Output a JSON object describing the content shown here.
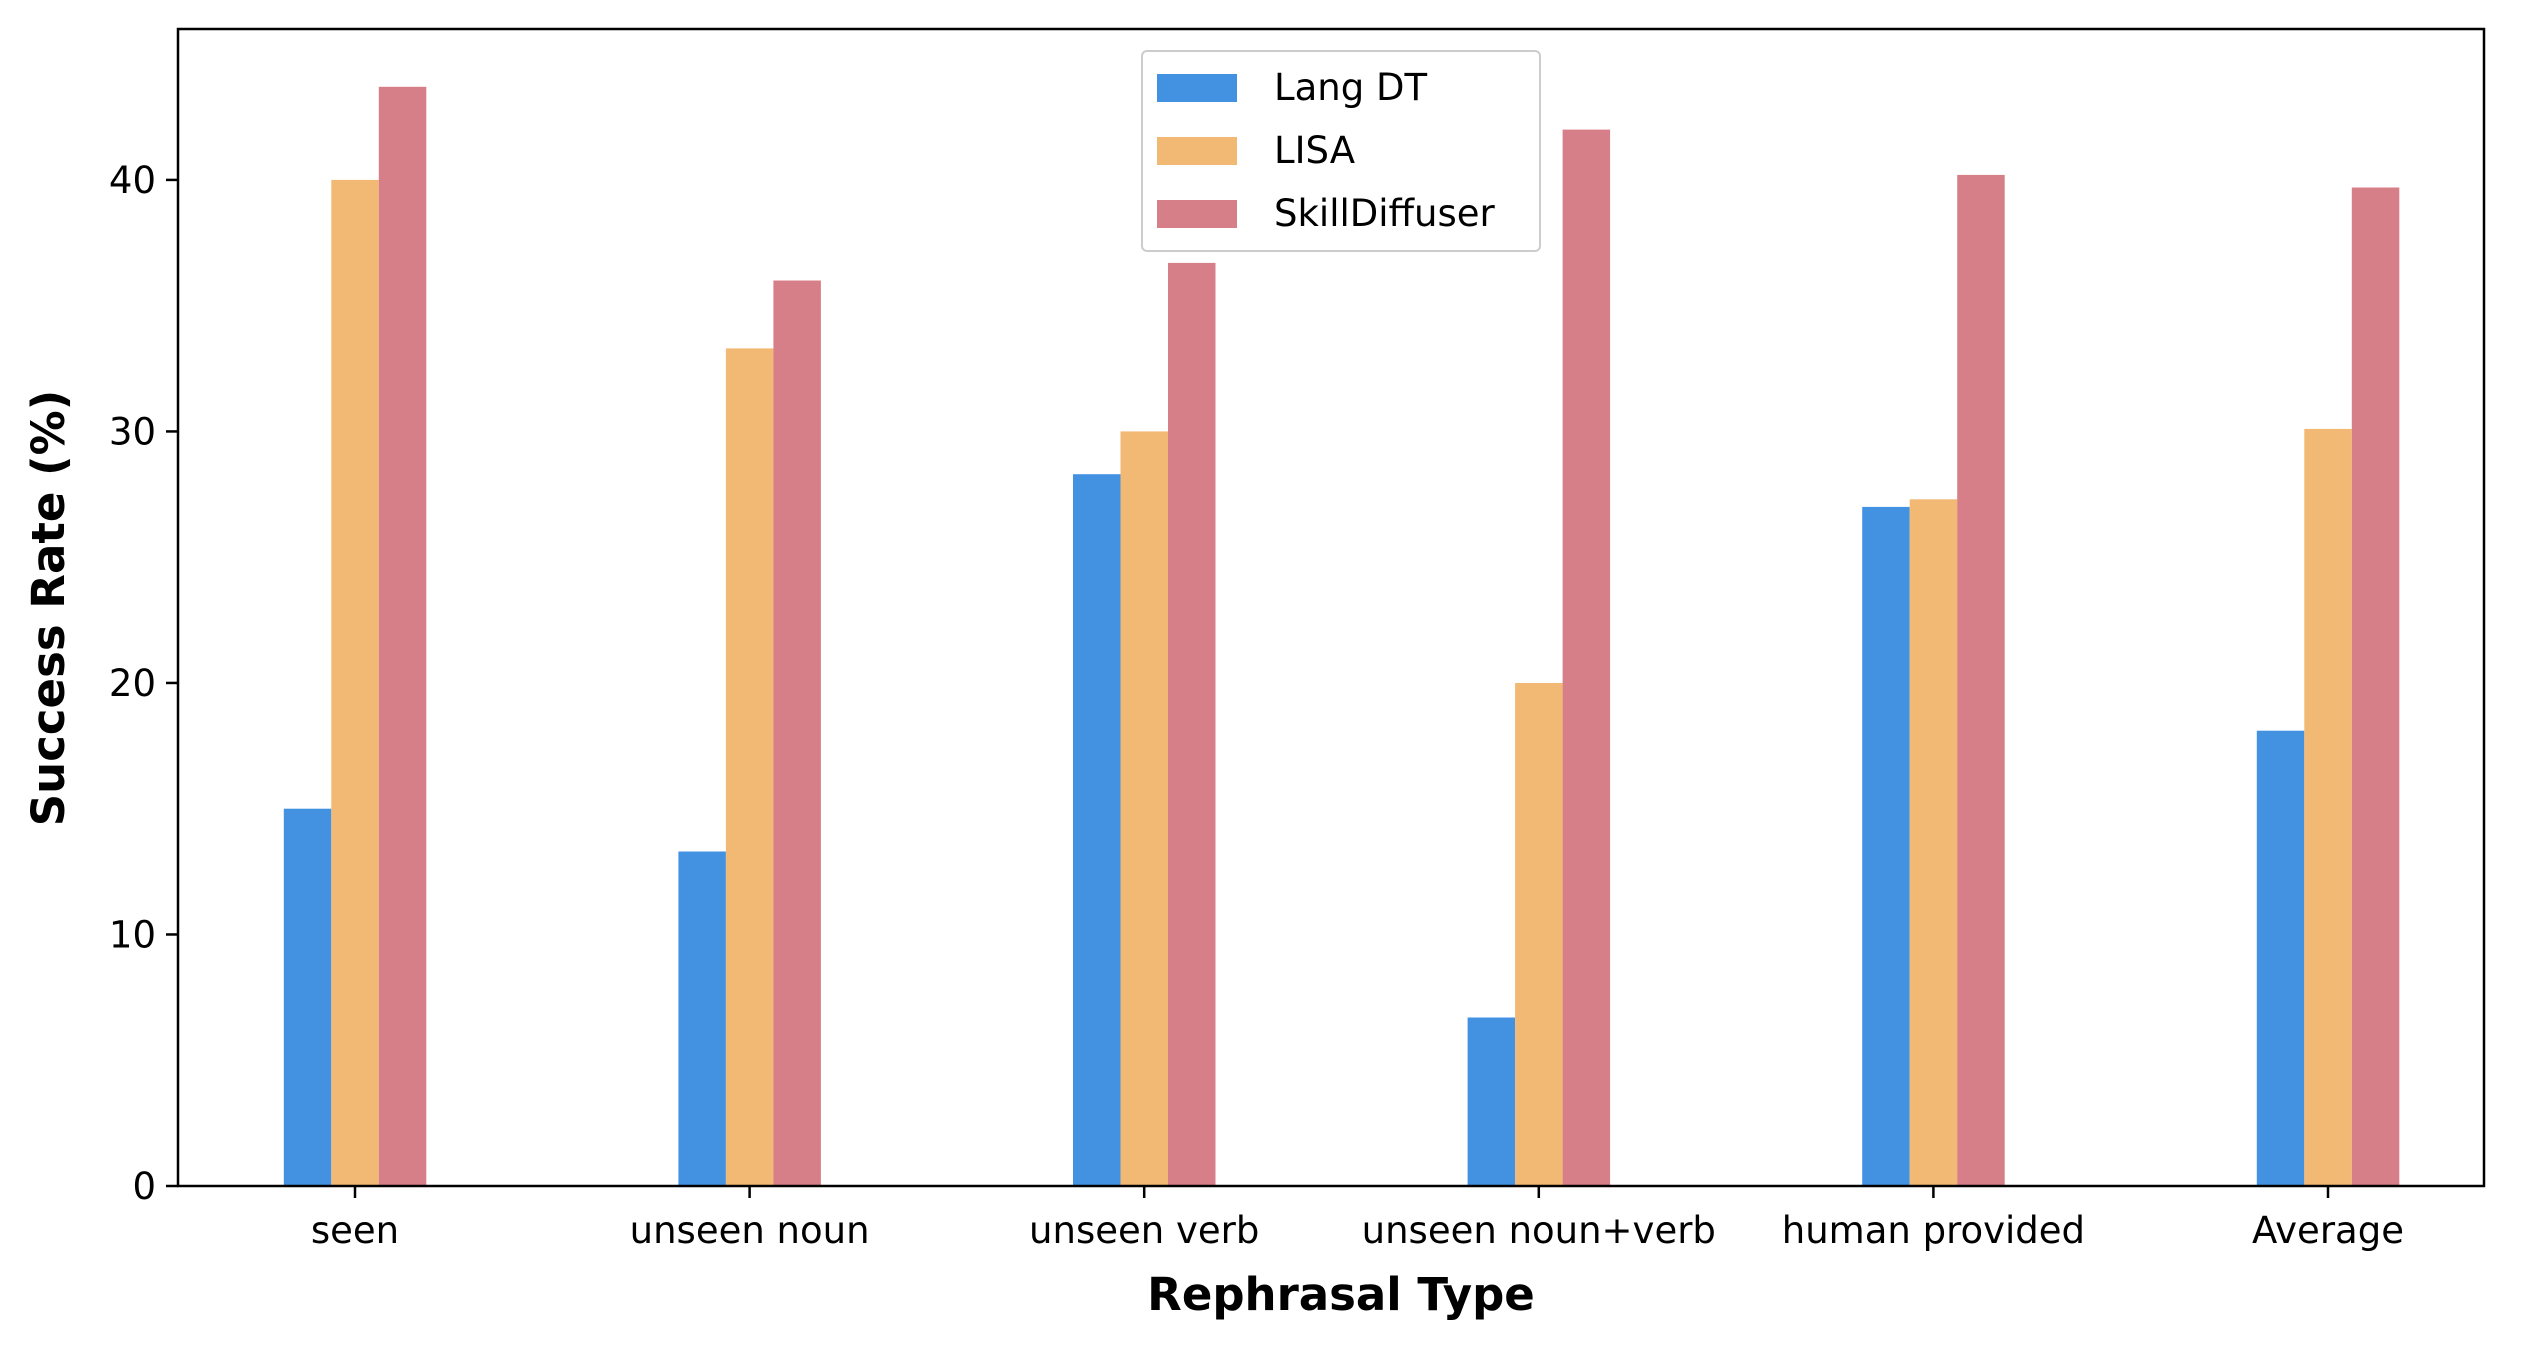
{
  "chart_data": {
    "type": "bar",
    "title": "",
    "xlabel": "Rephrasal Type",
    "ylabel": "Success Rate (%)",
    "ylim": [
      0,
      46
    ],
    "yticks": [
      0,
      10,
      20,
      30,
      40
    ],
    "grid": false,
    "legend_position": "top-center",
    "categories": [
      "seen",
      "unseen noun",
      "unseen verb",
      "unseen noun+verb",
      "human provided",
      "Average"
    ],
    "series": [
      {
        "name": "Lang DT",
        "color": "#4392e2",
        "values": [
          15.0,
          13.3,
          28.3,
          6.7,
          27.0,
          18.1
        ]
      },
      {
        "name": "LISA",
        "color": "#f2b974",
        "values": [
          40.0,
          33.3,
          30.0,
          20.0,
          27.3,
          30.1
        ]
      },
      {
        "name": "SkillDiffuser",
        "color": "#d77f88",
        "values": [
          43.7,
          36.0,
          36.7,
          42.0,
          40.2,
          39.7
        ]
      }
    ]
  }
}
